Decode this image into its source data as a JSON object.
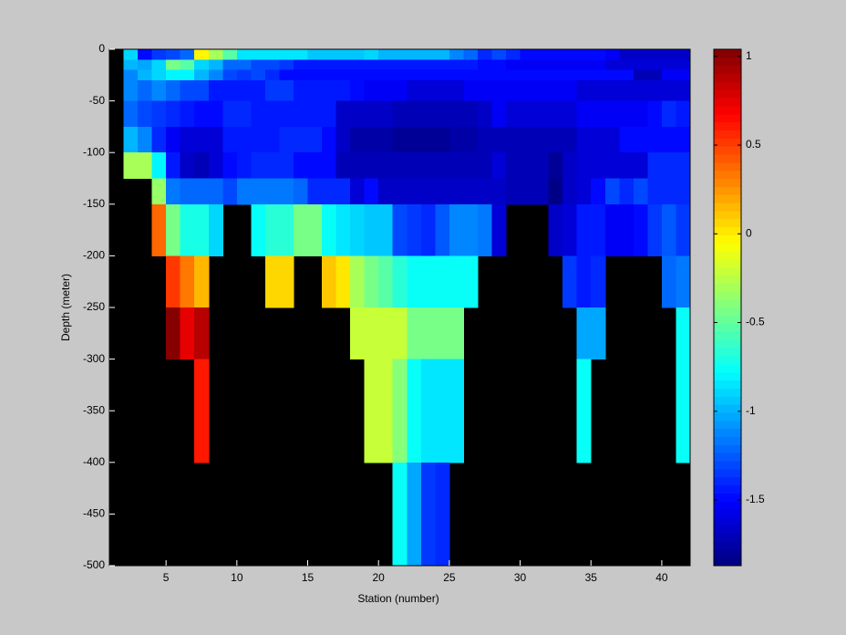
{
  "chart_data": {
    "type": "heatmap",
    "xlabel": "Station (number)",
    "ylabel": "Depth (meter)",
    "colormap": "jet",
    "clim": [
      -1.87,
      1.04
    ],
    "cticks": [
      -1.5,
      -1,
      -0.5,
      0,
      0.5,
      1
    ],
    "xlim": [
      1,
      42
    ],
    "ylim": [
      -500,
      0
    ],
    "xticks": [
      5,
      10,
      15,
      20,
      25,
      30,
      35,
      40
    ],
    "yticks": [
      0,
      -50,
      -100,
      -150,
      -200,
      -250,
      -300,
      -350,
      -400,
      -450,
      -500
    ],
    "x_edges": [
      2,
      3,
      4,
      5,
      6,
      7,
      8,
      9,
      10,
      11,
      12,
      13,
      14,
      15,
      16,
      17,
      18,
      19,
      20,
      21,
      22,
      23,
      24,
      25,
      26,
      27,
      28,
      29,
      30,
      31,
      32,
      33,
      34,
      35,
      36,
      37,
      38,
      39,
      40,
      41,
      42
    ],
    "y_edges": [
      0,
      -10,
      -20,
      -30,
      -50,
      -75,
      -100,
      -125,
      -150,
      -200,
      -250,
      -300,
      -400,
      -500
    ],
    "z": [
      [
        -0.9,
        -1.5,
        -1.35,
        -1.3,
        -1.2,
        -0.05,
        -0.3,
        -0.55,
        -0.85,
        -0.85,
        -0.85,
        -0.85,
        -0.85,
        -0.95,
        -0.95,
        -0.95,
        -0.95,
        -0.9,
        -1.0,
        -1.0,
        -1.0,
        -1.0,
        -1.0,
        -1.1,
        -1.2,
        -1.4,
        -1.3,
        -1.4,
        -1.5,
        -1.5,
        -1.5,
        -1.5,
        -1.5,
        -1.5,
        -1.55,
        -1.65,
        -1.65,
        -1.65,
        -1.65,
        -1.65
      ],
      [
        -1.0,
        -1.05,
        -0.9,
        -0.45,
        -0.55,
        -0.9,
        -1.0,
        -1.2,
        -1.2,
        -1.3,
        -1.3,
        -1.35,
        -1.45,
        -1.45,
        -1.45,
        -1.45,
        -1.45,
        -1.45,
        -1.45,
        -1.45,
        -1.45,
        -1.45,
        -1.45,
        -1.45,
        -1.45,
        -1.5,
        -1.5,
        -1.55,
        -1.55,
        -1.55,
        -1.55,
        -1.55,
        -1.55,
        -1.55,
        -1.6,
        -1.6,
        -1.6,
        -1.6,
        -1.6,
        -1.6
      ],
      [
        -1.1,
        -1.0,
        -0.9,
        -0.8,
        -0.8,
        -1.0,
        -1.1,
        -1.3,
        -1.35,
        -1.3,
        -1.4,
        -1.5,
        -1.5,
        -1.5,
        -1.5,
        -1.5,
        -1.5,
        -1.5,
        -1.5,
        -1.5,
        -1.5,
        -1.5,
        -1.5,
        -1.5,
        -1.5,
        -1.5,
        -1.5,
        -1.5,
        -1.5,
        -1.5,
        -1.5,
        -1.5,
        -1.5,
        -1.5,
        -1.5,
        -1.5,
        -1.7,
        -1.7,
        -1.55,
        -1.55
      ],
      [
        -1.1,
        -1.2,
        -1.1,
        -1.2,
        -1.3,
        -1.3,
        -1.45,
        -1.45,
        -1.45,
        -1.45,
        -1.35,
        -1.35,
        -1.45,
        -1.45,
        -1.45,
        -1.45,
        -1.5,
        -1.55,
        -1.55,
        -1.55,
        -1.6,
        -1.6,
        -1.6,
        -1.6,
        -1.55,
        -1.55,
        -1.55,
        -1.55,
        -1.55,
        -1.55,
        -1.55,
        -1.55,
        -1.6,
        -1.6,
        -1.6,
        -1.6,
        -1.6,
        -1.6,
        -1.6,
        -1.6
      ],
      [
        -1.2,
        -1.3,
        -1.35,
        -1.4,
        -1.45,
        -1.5,
        -1.5,
        -1.4,
        -1.4,
        -1.45,
        -1.45,
        -1.45,
        -1.45,
        -1.45,
        -1.45,
        -1.65,
        -1.65,
        -1.65,
        -1.65,
        -1.7,
        -1.7,
        -1.7,
        -1.7,
        -1.7,
        -1.7,
        -1.65,
        -1.55,
        -1.6,
        -1.6,
        -1.6,
        -1.6,
        -1.6,
        -1.55,
        -1.55,
        -1.55,
        -1.55,
        -1.55,
        -1.5,
        -1.4,
        -1.45
      ],
      [
        -1.0,
        -1.1,
        -1.4,
        -1.55,
        -1.6,
        -1.6,
        -1.6,
        -1.45,
        -1.45,
        -1.45,
        -1.45,
        -1.4,
        -1.4,
        -1.4,
        -1.5,
        -1.65,
        -1.75,
        -1.75,
        -1.75,
        -1.8,
        -1.8,
        -1.8,
        -1.8,
        -1.75,
        -1.75,
        -1.7,
        -1.7,
        -1.7,
        -1.7,
        -1.7,
        -1.7,
        -1.7,
        -1.6,
        -1.6,
        -1.6,
        -1.5,
        -1.5,
        -1.5,
        -1.5,
        -1.5
      ],
      [
        -0.3,
        -0.3,
        -0.8,
        -1.45,
        -1.65,
        -1.7,
        -1.6,
        -1.5,
        -1.45,
        -1.4,
        -1.4,
        -1.4,
        -1.5,
        -1.5,
        -1.5,
        -1.7,
        -1.7,
        -1.7,
        -1.7,
        -1.7,
        -1.7,
        -1.7,
        -1.7,
        -1.7,
        -1.7,
        -1.7,
        -1.6,
        -1.7,
        -1.7,
        -1.7,
        -1.8,
        -1.65,
        -1.6,
        -1.6,
        -1.6,
        -1.6,
        -1.6,
        -1.4,
        -1.4,
        -1.4
      ],
      [
        null,
        null,
        -0.35,
        -1.15,
        -1.2,
        -1.2,
        -1.2,
        -1.3,
        -1.15,
        -1.15,
        -1.15,
        -1.15,
        -1.2,
        -1.4,
        -1.4,
        -1.4,
        -1.6,
        -1.5,
        -1.65,
        -1.65,
        -1.65,
        -1.65,
        -1.65,
        -1.65,
        -1.65,
        -1.65,
        -1.65,
        -1.7,
        -1.7,
        -1.7,
        -1.85,
        -1.65,
        -1.6,
        -1.5,
        -1.3,
        -1.4,
        -1.3,
        -1.4,
        -1.4,
        -1.4
      ],
      [
        null,
        null,
        0.4,
        -0.45,
        -0.7,
        -0.7,
        -0.9,
        null,
        null,
        -0.75,
        -0.65,
        -0.65,
        -0.45,
        -0.45,
        -0.75,
        -0.85,
        -0.9,
        -0.95,
        -0.95,
        -1.3,
        -1.35,
        -1.4,
        -1.25,
        -1.1,
        -1.1,
        -1.15,
        -1.6,
        null,
        null,
        null,
        -1.65,
        -1.6,
        -1.45,
        -1.45,
        -1.55,
        -1.55,
        -1.5,
        -1.35,
        -1.25,
        -1.35
      ],
      [
        null,
        null,
        null,
        0.5,
        0.35,
        0.15,
        null,
        null,
        null,
        null,
        0.05,
        0.05,
        null,
        null,
        0.1,
        0.0,
        -0.3,
        -0.45,
        -0.55,
        -0.65,
        -0.75,
        -0.75,
        -0.75,
        -0.75,
        -0.75,
        null,
        null,
        null,
        null,
        null,
        null,
        -1.35,
        -1.45,
        -1.4,
        null,
        null,
        null,
        null,
        -1.2,
        -1.15
      ],
      [
        null,
        null,
        null,
        1.0,
        0.75,
        0.9,
        null,
        null,
        null,
        null,
        null,
        null,
        null,
        null,
        null,
        null,
        -0.2,
        -0.2,
        -0.2,
        -0.2,
        -0.45,
        -0.45,
        -0.45,
        -0.45,
        null,
        null,
        null,
        null,
        null,
        null,
        null,
        null,
        -1.05,
        -1.05,
        null,
        null,
        null,
        null,
        null,
        -0.75
      ],
      [
        null,
        null,
        null,
        null,
        null,
        0.6,
        null,
        null,
        null,
        null,
        null,
        null,
        null,
        null,
        null,
        null,
        null,
        -0.2,
        -0.2,
        -0.4,
        -0.75,
        -0.85,
        -0.85,
        -0.85,
        null,
        null,
        null,
        null,
        null,
        null,
        null,
        null,
        -0.75,
        null,
        null,
        null,
        null,
        null,
        null,
        -0.75
      ],
      [
        null,
        null,
        null,
        null,
        null,
        null,
        null,
        null,
        null,
        null,
        null,
        null,
        null,
        null,
        null,
        null,
        null,
        null,
        null,
        -0.75,
        -1.05,
        -1.35,
        -1.4,
        null,
        null,
        null,
        null,
        null,
        null,
        null,
        null,
        null,
        null,
        null,
        null,
        null,
        null,
        null,
        null,
        null
      ]
    ]
  }
}
